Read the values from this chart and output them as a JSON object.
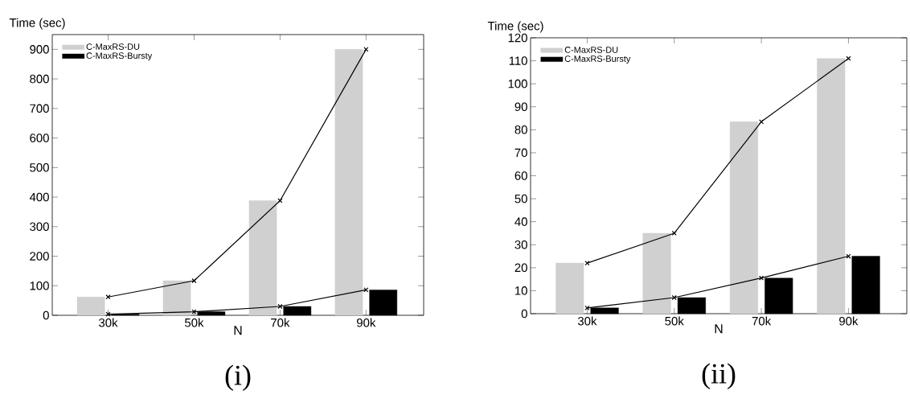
{
  "chart_data": [
    {
      "type": "bar",
      "xlabel": "N",
      "ylabel": "Time (sec)",
      "categories": [
        "30k",
        "50k",
        "70k",
        "90k"
      ],
      "series": [
        {
          "name": "C-MaxRS-DU",
          "color": "#d0d0d0",
          "values": [
            62,
            117,
            388,
            900
          ]
        },
        {
          "name": "C-MaxRS-Bursty",
          "color": "#000000",
          "values": [
            4,
            12,
            30,
            86
          ]
        },
        {
          "type": "line",
          "color": "#000000",
          "values": [
            62,
            117,
            388,
            900
          ]
        },
        {
          "type": "line",
          "color": "#000000",
          "values": [
            4,
            12,
            30,
            86
          ]
        }
      ],
      "ylim": [
        0,
        950
      ],
      "yticks": [
        0,
        100,
        200,
        300,
        400,
        500,
        600,
        700,
        800,
        900
      ],
      "legend": "top left",
      "marker": "cross",
      "line_style": "solid",
      "annotations": [
        "(i)"
      ]
    },
    {
      "type": "bar",
      "xlabel": "N",
      "ylabel": "Time (sec)",
      "categories": [
        "30k",
        "50k",
        "70k",
        "90k"
      ],
      "series": [
        {
          "name": "C-MaxRS-DU",
          "color": "#d0d0d0",
          "values": [
            22,
            35,
            83.5,
            111
          ]
        },
        {
          "name": "C-MaxRS-Bursty",
          "color": "#000000",
          "values": [
            2.5,
            7,
            15.5,
            25
          ]
        },
        {
          "type": "line",
          "color": "#000000",
          "values": [
            22,
            35,
            83.5,
            111
          ]
        },
        {
          "type": "line",
          "color": "#000000",
          "values": [
            2.5,
            7,
            15.5,
            25
          ]
        }
      ],
      "ylim": [
        0,
        120
      ],
      "yticks": [
        0,
        10,
        20,
        30,
        40,
        50,
        60,
        70,
        80,
        90,
        100,
        110,
        120
      ],
      "legend": "top left",
      "marker": "cross",
      "line_style": "solid",
      "annotations": [
        "(ii)"
      ]
    }
  ]
}
